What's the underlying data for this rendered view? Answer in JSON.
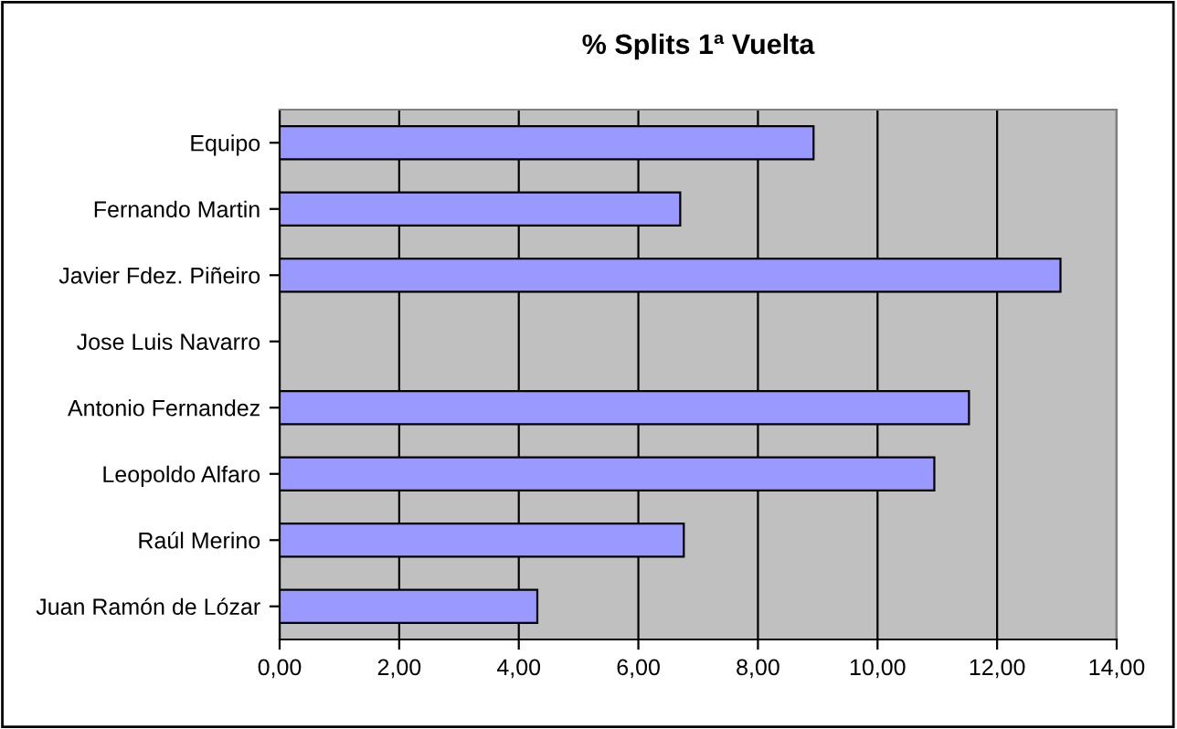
{
  "chart_data": {
    "type": "bar",
    "orientation": "horizontal",
    "title": "% Splits 1ª Vuelta",
    "categories": [
      "Equipo",
      "Fernando Martin",
      "Javier Fdez. Piñeiro",
      "Jose Luis Navarro",
      "Antonio Fernandez",
      "Leopoldo Alfaro",
      "Raúl Merino",
      "Juan Ramón de Lózar"
    ],
    "values": [
      8.93,
      6.7,
      13.06,
      null,
      11.53,
      10.95,
      6.76,
      4.31
    ],
    "color": "#9999ff",
    "xlim": [
      0,
      14
    ],
    "xticks": [
      {
        "value": 0,
        "label": "0,00"
      },
      {
        "value": 2,
        "label": "2,00"
      },
      {
        "value": 4,
        "label": "4,00"
      },
      {
        "value": 6,
        "label": "6,00"
      },
      {
        "value": 8,
        "label": "8,00"
      },
      {
        "value": 10,
        "label": "10,00"
      },
      {
        "value": 12,
        "label": "12,00"
      },
      {
        "value": 14,
        "label": "14,00"
      }
    ],
    "grid": "x",
    "legend": false
  }
}
